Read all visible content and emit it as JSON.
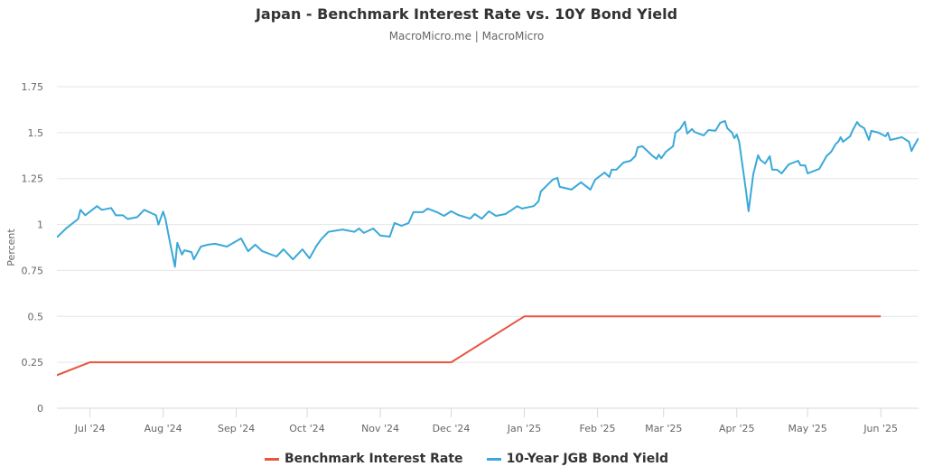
{
  "chart_data": {
    "type": "line",
    "title": "Japan - Benchmark Interest Rate vs. 10Y Bond Yield",
    "subtitle": "MacroMicro.me | MacroMicro",
    "ylabel": "Percent",
    "xlabel": "",
    "ylim": [
      0,
      1.75
    ],
    "xlim": [
      "2024-06-17",
      "2025-06-17"
    ],
    "yticks": [
      "0",
      "0.25",
      "0.5",
      "0.75",
      "1",
      "1.25",
      "1.5",
      "1.75"
    ],
    "xticks": [
      {
        "date": "2024-07-01",
        "label": "Jul '24"
      },
      {
        "date": "2024-08-01",
        "label": "Aug '24"
      },
      {
        "date": "2024-09-01",
        "label": "Sep '24"
      },
      {
        "date": "2024-10-01",
        "label": "Oct '24"
      },
      {
        "date": "2024-11-01",
        "label": "Nov '24"
      },
      {
        "date": "2024-12-01",
        "label": "Dec '24"
      },
      {
        "date": "2025-01-01",
        "label": "Jan '25"
      },
      {
        "date": "2025-02-01",
        "label": "Feb '25"
      },
      {
        "date": "2025-03-01",
        "label": "Mar '25"
      },
      {
        "date": "2025-04-01",
        "label": "Apr '25"
      },
      {
        "date": "2025-05-01",
        "label": "May '25"
      },
      {
        "date": "2025-06-01",
        "label": "Jun '25"
      }
    ],
    "grid": true,
    "legend_position": "bottom",
    "series": [
      {
        "name": "Benchmark Interest Rate",
        "color": "#e8553f",
        "points": [
          [
            "2024-06-01",
            0.1
          ],
          [
            "2024-07-01",
            0.25
          ],
          [
            "2024-08-01",
            0.25
          ],
          [
            "2024-09-01",
            0.25
          ],
          [
            "2024-10-01",
            0.25
          ],
          [
            "2024-11-01",
            0.25
          ],
          [
            "2024-12-01",
            0.25
          ],
          [
            "2025-01-01",
            0.5
          ],
          [
            "2025-02-01",
            0.5
          ],
          [
            "2025-03-01",
            0.5
          ],
          [
            "2025-04-01",
            0.5
          ],
          [
            "2025-05-01",
            0.5
          ],
          [
            "2025-06-01",
            0.5
          ]
        ]
      },
      {
        "name": "10-Year JGB Bond Yield",
        "color": "#3aa9d8",
        "points": [
          [
            "2024-06-17",
            0.93
          ],
          [
            "2024-06-21",
            0.98
          ],
          [
            "2024-06-26",
            1.03
          ],
          [
            "2024-06-27",
            1.08
          ],
          [
            "2024-06-29",
            1.05
          ],
          [
            "2024-07-01",
            1.07
          ],
          [
            "2024-07-04",
            1.1
          ],
          [
            "2024-07-06",
            1.08
          ],
          [
            "2024-07-10",
            1.09
          ],
          [
            "2024-07-12",
            1.05
          ],
          [
            "2024-07-15",
            1.05
          ],
          [
            "2024-07-17",
            1.03
          ],
          [
            "2024-07-21",
            1.04
          ],
          [
            "2024-07-24",
            1.08
          ],
          [
            "2024-07-29",
            1.05
          ],
          [
            "2024-07-30",
            1.0
          ],
          [
            "2024-08-01",
            1.07
          ],
          [
            "2024-08-02",
            1.03
          ],
          [
            "2024-08-04",
            0.895
          ],
          [
            "2024-08-06",
            0.77
          ],
          [
            "2024-08-07",
            0.9
          ],
          [
            "2024-08-09",
            0.836
          ],
          [
            "2024-08-10",
            0.86
          ],
          [
            "2024-08-13",
            0.85
          ],
          [
            "2024-08-14",
            0.81
          ],
          [
            "2024-08-17",
            0.88
          ],
          [
            "2024-08-20",
            0.89
          ],
          [
            "2024-08-23",
            0.895
          ],
          [
            "2024-08-28",
            0.88
          ],
          [
            "2024-09-03",
            0.924
          ],
          [
            "2024-09-06",
            0.855
          ],
          [
            "2024-09-09",
            0.89
          ],
          [
            "2024-09-12",
            0.855
          ],
          [
            "2024-09-18",
            0.826
          ],
          [
            "2024-09-21",
            0.865
          ],
          [
            "2024-09-25",
            0.81
          ],
          [
            "2024-09-29",
            0.865
          ],
          [
            "2024-10-02",
            0.816
          ],
          [
            "2024-10-05",
            0.885
          ],
          [
            "2024-10-07",
            0.92
          ],
          [
            "2024-10-10",
            0.96
          ],
          [
            "2024-10-16",
            0.973
          ],
          [
            "2024-10-21",
            0.96
          ],
          [
            "2024-10-23",
            0.978
          ],
          [
            "2024-10-25",
            0.954
          ],
          [
            "2024-10-29",
            0.978
          ],
          [
            "2024-11-01",
            0.94
          ],
          [
            "2024-11-05",
            0.934
          ],
          [
            "2024-11-07",
            1.008
          ],
          [
            "2024-11-10",
            0.993
          ],
          [
            "2024-11-13",
            1.008
          ],
          [
            "2024-11-15",
            1.067
          ],
          [
            "2024-11-19",
            1.067
          ],
          [
            "2024-11-21",
            1.087
          ],
          [
            "2024-11-25",
            1.067
          ],
          [
            "2024-11-28",
            1.047
          ],
          [
            "2024-12-01",
            1.072
          ],
          [
            "2024-12-04",
            1.052
          ],
          [
            "2024-12-09",
            1.032
          ],
          [
            "2024-12-11",
            1.057
          ],
          [
            "2024-12-14",
            1.032
          ],
          [
            "2024-12-17",
            1.072
          ],
          [
            "2024-12-20",
            1.047
          ],
          [
            "2024-12-24",
            1.057
          ],
          [
            "2024-12-27",
            1.082
          ],
          [
            "2024-12-29",
            1.1
          ],
          [
            "2024-12-31",
            1.087
          ],
          [
            "2025-01-05",
            1.1
          ],
          [
            "2025-01-07",
            1.126
          ],
          [
            "2025-01-08",
            1.18
          ],
          [
            "2025-01-13",
            1.244
          ],
          [
            "2025-01-15",
            1.254
          ],
          [
            "2025-01-16",
            1.205
          ],
          [
            "2025-01-21",
            1.19
          ],
          [
            "2025-01-25",
            1.23
          ],
          [
            "2025-01-29",
            1.19
          ],
          [
            "2025-01-31",
            1.244
          ],
          [
            "2025-02-04",
            1.283
          ],
          [
            "2025-02-06",
            1.259
          ],
          [
            "2025-02-07",
            1.298
          ],
          [
            "2025-02-09",
            1.298
          ],
          [
            "2025-02-12",
            1.337
          ],
          [
            "2025-02-15",
            1.347
          ],
          [
            "2025-02-17",
            1.372
          ],
          [
            "2025-02-18",
            1.42
          ],
          [
            "2025-02-20",
            1.426
          ],
          [
            "2025-02-24",
            1.377
          ],
          [
            "2025-02-26",
            1.357
          ],
          [
            "2025-02-27",
            1.38
          ],
          [
            "2025-02-28",
            1.36
          ],
          [
            "2025-03-02",
            1.396
          ],
          [
            "2025-03-05",
            1.426
          ],
          [
            "2025-03-06",
            1.5
          ],
          [
            "2025-03-08",
            1.52
          ],
          [
            "2025-03-10",
            1.56
          ],
          [
            "2025-03-11",
            1.495
          ],
          [
            "2025-03-13",
            1.52
          ],
          [
            "2025-03-14",
            1.504
          ],
          [
            "2025-03-18",
            1.485
          ],
          [
            "2025-03-20",
            1.514
          ],
          [
            "2025-03-23",
            1.51
          ],
          [
            "2025-03-25",
            1.554
          ],
          [
            "2025-03-27",
            1.563
          ],
          [
            "2025-03-28",
            1.524
          ],
          [
            "2025-03-30",
            1.5
          ],
          [
            "2025-03-31",
            1.47
          ],
          [
            "2025-04-01",
            1.49
          ],
          [
            "2025-04-02",
            1.45
          ],
          [
            "2025-04-05",
            1.175
          ],
          [
            "2025-04-06",
            1.072
          ],
          [
            "2025-04-08",
            1.273
          ],
          [
            "2025-04-10",
            1.377
          ],
          [
            "2025-04-11",
            1.352
          ],
          [
            "2025-04-13",
            1.332
          ],
          [
            "2025-04-15",
            1.372
          ],
          [
            "2025-04-16",
            1.298
          ],
          [
            "2025-04-18",
            1.298
          ],
          [
            "2025-04-20",
            1.278
          ],
          [
            "2025-04-23",
            1.327
          ],
          [
            "2025-04-25",
            1.337
          ],
          [
            "2025-04-27",
            1.347
          ],
          [
            "2025-04-28",
            1.322
          ],
          [
            "2025-04-30",
            1.322
          ],
          [
            "2025-05-01",
            1.278
          ],
          [
            "2025-05-06",
            1.303
          ],
          [
            "2025-05-09",
            1.372
          ],
          [
            "2025-05-11",
            1.396
          ],
          [
            "2025-05-13",
            1.44
          ],
          [
            "2025-05-14",
            1.45
          ],
          [
            "2025-05-15",
            1.475
          ],
          [
            "2025-05-16",
            1.45
          ],
          [
            "2025-05-19",
            1.48
          ],
          [
            "2025-05-20",
            1.51
          ],
          [
            "2025-05-22",
            1.558
          ],
          [
            "2025-05-23",
            1.539
          ],
          [
            "2025-05-25",
            1.524
          ],
          [
            "2025-05-27",
            1.46
          ],
          [
            "2025-05-28",
            1.51
          ],
          [
            "2025-05-31",
            1.5
          ],
          [
            "2025-06-03",
            1.48
          ],
          [
            "2025-06-04",
            1.5
          ],
          [
            "2025-06-05",
            1.46
          ],
          [
            "2025-06-10",
            1.475
          ],
          [
            "2025-06-13",
            1.45
          ],
          [
            "2025-06-14",
            1.4
          ],
          [
            "2025-06-15",
            1.426
          ],
          [
            "2025-06-17",
            1.47
          ]
        ]
      }
    ]
  }
}
